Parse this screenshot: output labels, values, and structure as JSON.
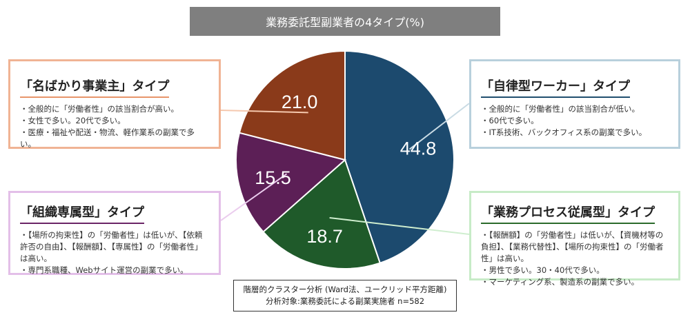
{
  "title": "業務委託型副業者の4タイプ(%)",
  "chart_data": {
    "type": "pie",
    "title": "業務委託型副業者の4タイプ(%)",
    "slices": [
      {
        "value": 44.8,
        "label": "44.8",
        "color": "#1c4a6e"
      },
      {
        "value": 18.7,
        "label": "18.7",
        "color": "#1f5a2a"
      },
      {
        "value": 15.5,
        "label": "15.5",
        "color": "#5c1f56"
      },
      {
        "value": 21.0,
        "label": "21.0",
        "color": "#8a3a1a"
      }
    ]
  },
  "boxes": {
    "top_left": {
      "heading": "「名ばかり事業主」タイプ",
      "bullets": [
        "・全般的に「労働者性」の該当割合が高い。",
        "・女性で多い。20代で多い。",
        "・医療・福祉や配送・物流、軽作業系の副業で多い。"
      ]
    },
    "top_right": {
      "heading": "「自律型ワーカー」タイプ",
      "bullets": [
        "・全般的に「労働者性」の該当割合が低い。",
        "・60代で多い。",
        "・IT系技術、バックオフィス系の副業で多い。"
      ]
    },
    "bottom_left": {
      "heading": "「組織専属型」タイプ",
      "bullets": [
        "・【場所の拘束性】の「労働者性」は低いが、【依頼許否の自由】、【報酬額】、【専属性】の「労働者性」は高い。",
        "・専門系職種、Webサイト運営の副業で多い。"
      ]
    },
    "bottom_right": {
      "heading": "「業務プロセス従属型」タイプ",
      "bullets": [
        "・【報酬額】の「労働者性」は低いが、【資機材等の負担】、【業務代替性】、【場所の拘束性】の「労働者性」は高い。",
        "・男性で多い。30・40代で多い。",
        "・マーケティング系、製造系の副業で多い。"
      ]
    }
  },
  "note": {
    "line1": "階層的クラスター分析 (Ward法、ユークリッド平方距離)",
    "line2": "分析対象:業務委託による副業実施者 n=582"
  }
}
